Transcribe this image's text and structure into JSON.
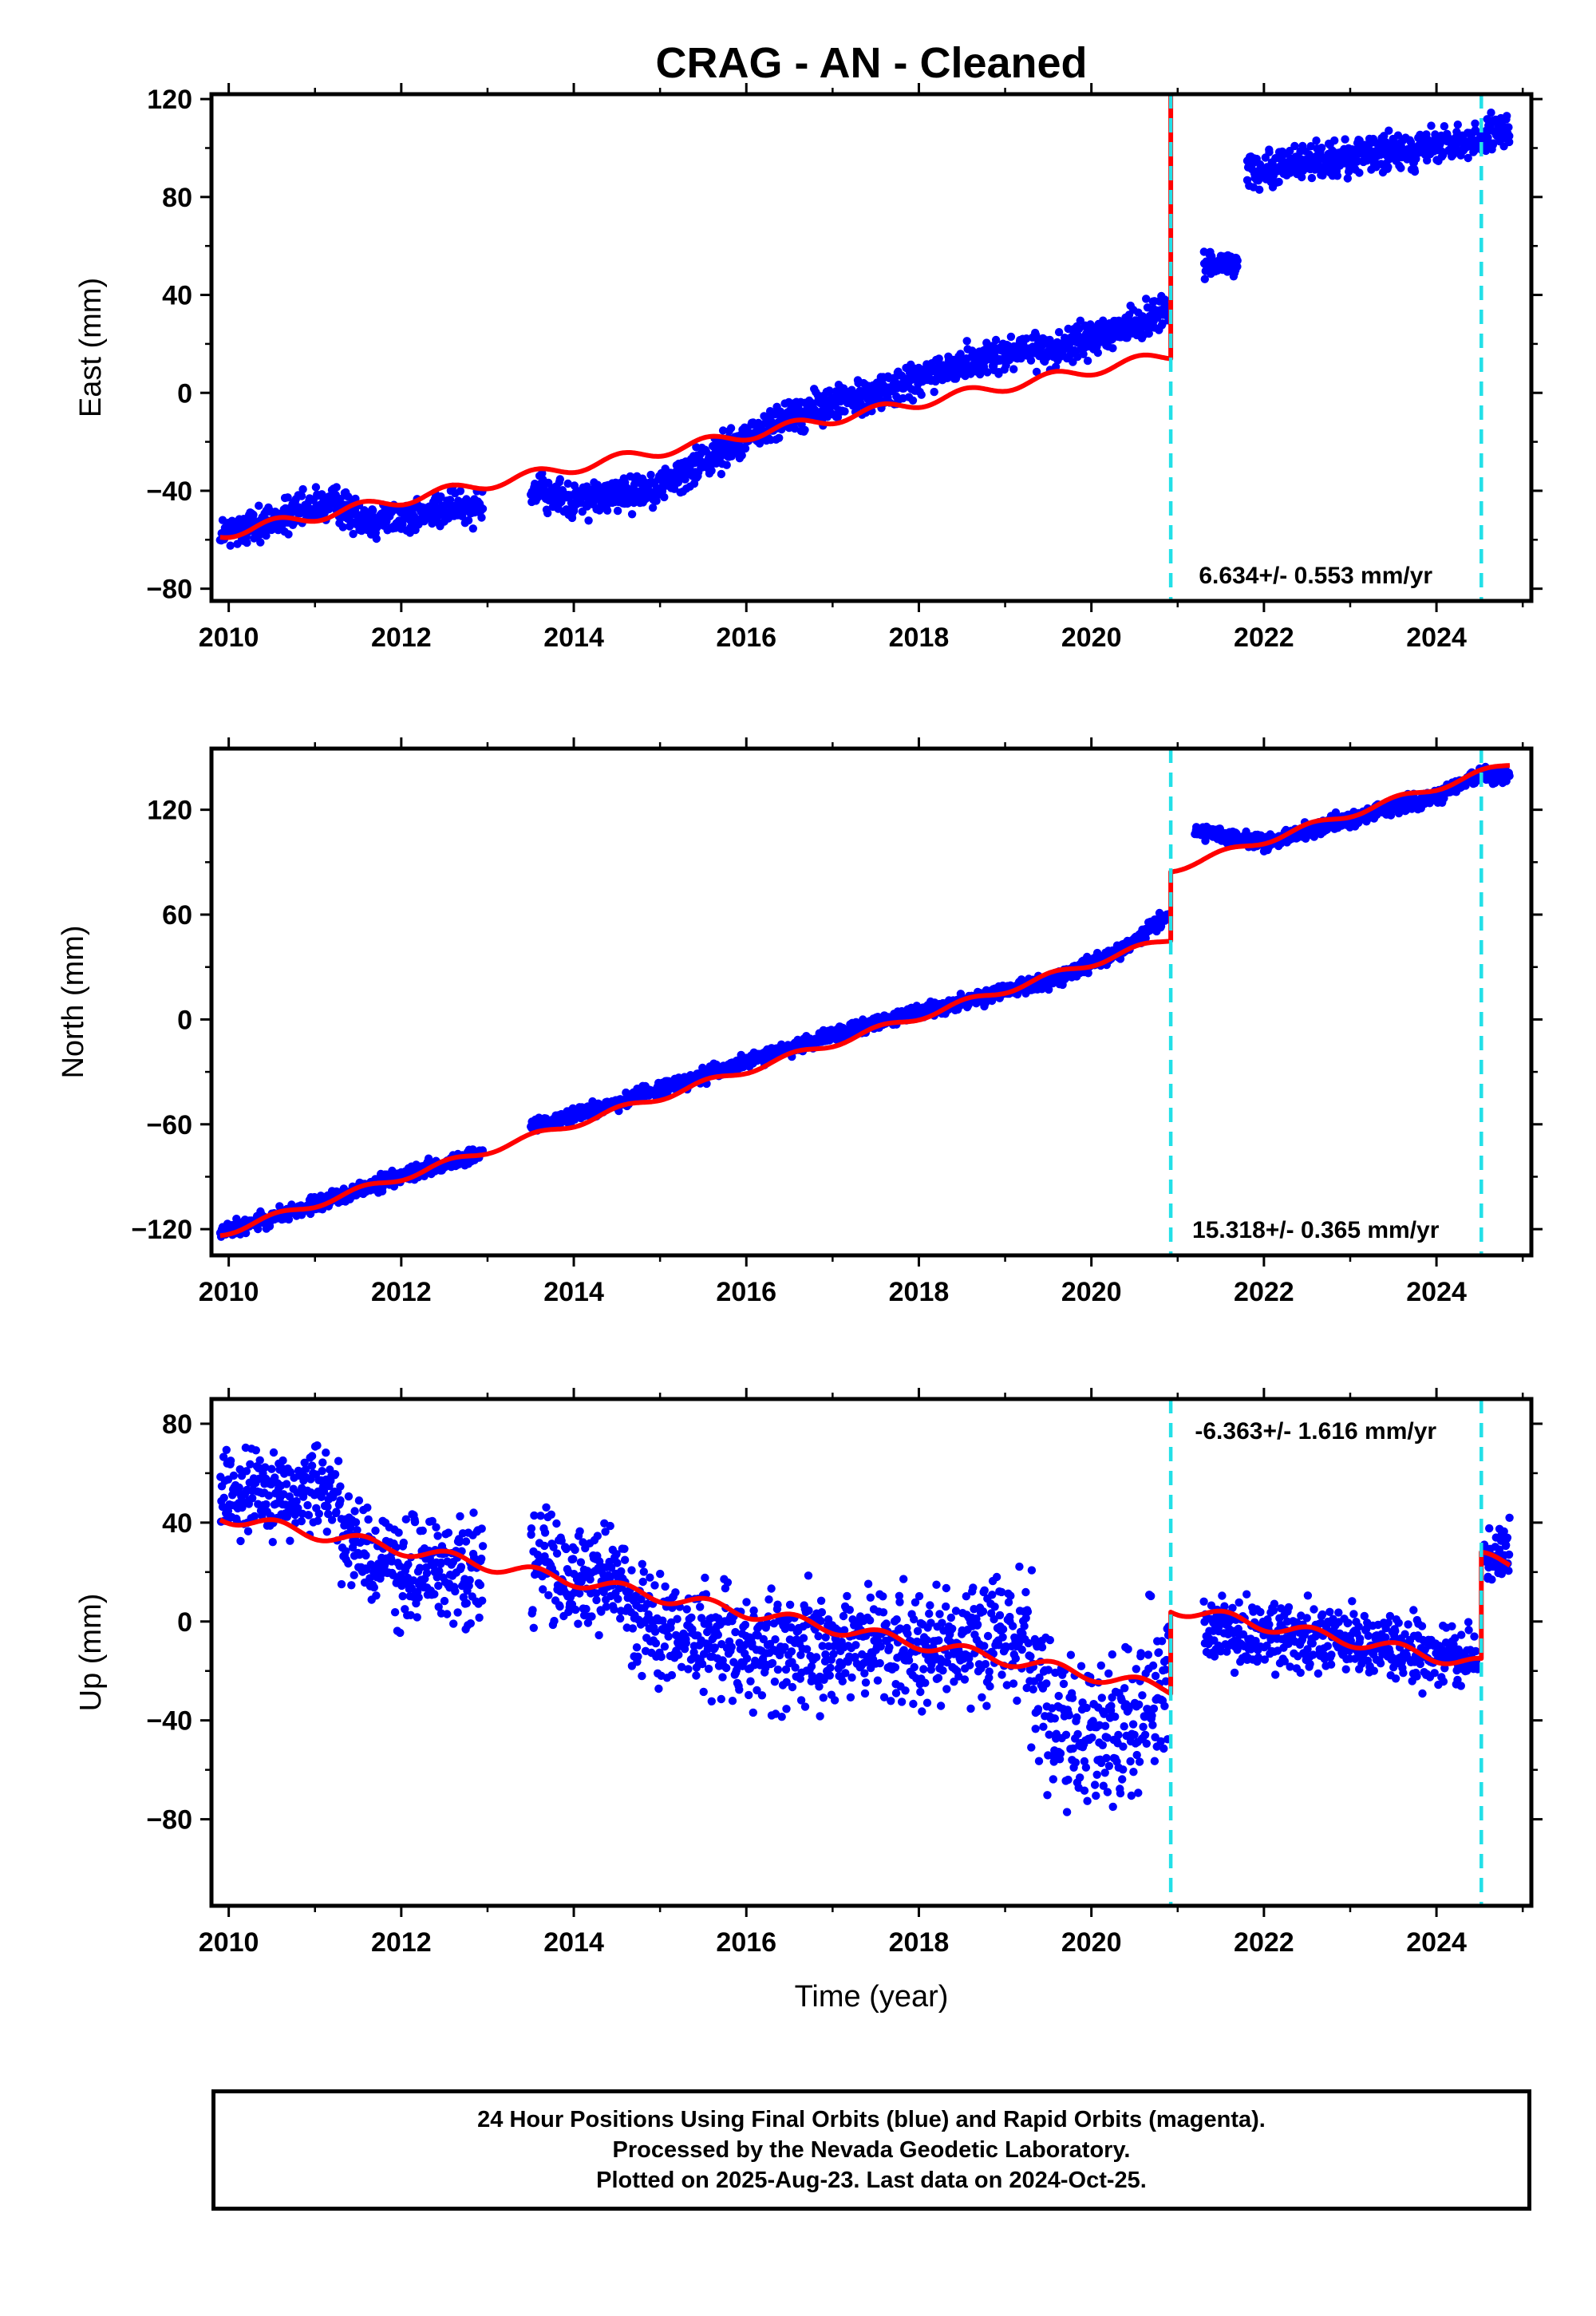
{
  "title": "CRAG  - AN - Cleaned",
  "colors": {
    "data": "#0000ff",
    "model": "#ff0000",
    "step": "#22e0e8",
    "frame": "#000000"
  },
  "chart_data": [
    {
      "type": "scatter",
      "panel": "east",
      "ylabel": "East (mm)",
      "xlim": [
        2009.8,
        2025.1
      ],
      "ylim": [
        -85,
        122
      ],
      "yticks": [
        -80,
        -40,
        0,
        40,
        80,
        120
      ],
      "xticks": [
        2010,
        2012,
        2014,
        2016,
        2018,
        2020,
        2022,
        2024
      ],
      "steps": [
        2020.92,
        2024.52
      ],
      "rate_text": "6.634+/- 0.553 mm/yr",
      "series": [
        {
          "kind": "points",
          "segments": [
            {
              "x0": 2009.9,
              "x1": 2012.95,
              "pts": [
                [
                  2009.9,
                  -58
                ],
                [
                  2010.5,
                  -52
                ],
                [
                  2011.2,
                  -45
                ],
                [
                  2011.6,
                  -52
                ],
                [
                  2012.2,
                  -50
                ],
                [
                  2012.95,
                  -45
                ]
              ],
              "noise": 5
            },
            {
              "x0": 2013.5,
              "x1": 2020.9,
              "pts": [
                [
                  2013.5,
                  -40
                ],
                [
                  2014.0,
                  -44
                ],
                [
                  2014.5,
                  -42
                ],
                [
                  2015.0,
                  -38
                ],
                [
                  2015.5,
                  -28
                ],
                [
                  2016.0,
                  -18
                ],
                [
                  2016.5,
                  -10
                ],
                [
                  2017.0,
                  -5
                ],
                [
                  2017.5,
                  0
                ],
                [
                  2018.0,
                  5
                ],
                [
                  2018.5,
                  12
                ],
                [
                  2019.0,
                  16
                ],
                [
                  2019.5,
                  18
                ],
                [
                  2020.0,
                  22
                ],
                [
                  2020.5,
                  28
                ],
                [
                  2020.9,
                  33
                ]
              ],
              "noise": 5
            },
            {
              "x0": 2021.3,
              "x1": 2021.7,
              "pts": [
                [
                  2021.3,
                  52
                ],
                [
                  2021.7,
                  53
                ]
              ],
              "noise": 3
            },
            {
              "x0": 2021.8,
              "x1": 2024.85,
              "pts": [
                [
                  2021.8,
                  90
                ],
                [
                  2022.5,
                  95
                ],
                [
                  2023.0,
                  96
                ],
                [
                  2023.5,
                  98
                ],
                [
                  2024.0,
                  100
                ],
                [
                  2024.5,
                  104
                ],
                [
                  2024.85,
                  108
                ]
              ],
              "noise": 5
            }
          ]
        },
        {
          "kind": "model",
          "segments": [
            {
              "x0": 2009.9,
              "x1": 2020.92,
              "base": -57,
              "rate": 6.634,
              "amp": 2.2
            },
            {
              "x0": 2020.92,
              "x1": 2024.52,
              "base": 75,
              "rate": 6.634,
              "amp": 2.2
            },
            {
              "x0": 2024.52,
              "x1": 2024.85,
              "base": 80.5,
              "rate": 6.634,
              "amp": 2.2
            }
          ]
        }
      ]
    },
    {
      "type": "scatter",
      "panel": "north",
      "ylabel": "North (mm)",
      "xlim": [
        2009.8,
        2025.1
      ],
      "ylim": [
        -135,
        155
      ],
      "yticks": [
        -120,
        -60,
        0,
        60,
        120
      ],
      "xticks": [
        2010,
        2012,
        2014,
        2016,
        2018,
        2020,
        2022,
        2024
      ],
      "steps": [
        2020.92,
        2024.52
      ],
      "rate_text": "15.318+/- 0.365 mm/yr",
      "series": [
        {
          "kind": "points",
          "segments": [
            {
              "x0": 2009.9,
              "x1": 2012.95,
              "pts": [
                [
                  2009.9,
                  -122
                ],
                [
                  2011.0,
                  -106
                ],
                [
                  2012.0,
                  -90
                ],
                [
                  2012.95,
                  -76
                ]
              ],
              "noise": 3
            },
            {
              "x0": 2013.5,
              "x1": 2020.9,
              "pts": [
                [
                  2013.5,
                  -62
                ],
                [
                  2014.5,
                  -48
                ],
                [
                  2015.5,
                  -32
                ],
                [
                  2016.5,
                  -16
                ],
                [
                  2017.5,
                  -2
                ],
                [
                  2018.5,
                  10
                ],
                [
                  2019.5,
                  22
                ],
                [
                  2020.3,
                  38
                ],
                [
                  2020.9,
                  60
                ]
              ],
              "noise": 3
            },
            {
              "x0": 2021.2,
              "x1": 2024.85,
              "pts": [
                [
                  2021.2,
                  108
                ],
                [
                  2022.0,
                  101
                ],
                [
                  2023.0,
                  115
                ],
                [
                  2024.0,
                  128
                ],
                [
                  2024.5,
                  140
                ],
                [
                  2024.85,
                  140
                ]
              ],
              "noise": 3
            }
          ]
        },
        {
          "kind": "model",
          "segments": [
            {
              "x0": 2009.9,
              "x1": 2020.92,
              "base": -121,
              "rate": 15.318,
              "amp": 2.0
            },
            {
              "x0": 2020.92,
              "x1": 2024.52,
              "base": -81.5,
              "rate": 15.318,
              "amp": 2.0
            },
            {
              "x0": 2024.52,
              "x1": 2024.85,
              "base": -81.5,
              "rate": 15.318,
              "amp": 2.0
            }
          ]
        }
      ]
    },
    {
      "type": "scatter",
      "panel": "up",
      "ylabel": "Up (mm)",
      "xlabel": "Time (year)",
      "xlim": [
        2009.8,
        2025.1
      ],
      "ylim": [
        -115,
        90
      ],
      "yticks": [
        -80,
        -40,
        0,
        40,
        80
      ],
      "xticks": [
        2010,
        2012,
        2014,
        2016,
        2018,
        2020,
        2022,
        2024
      ],
      "steps": [
        2020.92,
        2024.52
      ],
      "rate_text": "-6.363+/- 1.616 mm/yr",
      "series": [
        {
          "kind": "points",
          "segments": [
            {
              "x0": 2009.9,
              "x1": 2011.3,
              "pts": [
                [
                  2009.9,
                  55
                ],
                [
                  2010.5,
                  52
                ],
                [
                  2011.3,
                  50
                ]
              ],
              "noise": 12
            },
            {
              "x0": 2011.3,
              "x1": 2012.95,
              "pts": [
                [
                  2011.3,
                  35
                ],
                [
                  2012.0,
                  20
                ],
                [
                  2012.95,
                  20
                ]
              ],
              "noise": 14
            },
            {
              "x0": 2013.5,
              "x1": 2016.0,
              "pts": [
                [
                  2013.5,
                  25
                ],
                [
                  2014.5,
                  15
                ],
                [
                  2015.0,
                  -5
                ],
                [
                  2016.0,
                  -10
                ]
              ],
              "noise": 15
            },
            {
              "x0": 2016.0,
              "x1": 2019.3,
              "pts": [
                [
                  2016.0,
                  -15
                ],
                [
                  2017.0,
                  -8
                ],
                [
                  2018.0,
                  -12
                ],
                [
                  2019.0,
                  -5
                ],
                [
                  2019.3,
                  -5
                ]
              ],
              "noise": 16
            },
            {
              "x0": 2019.3,
              "x1": 2020.9,
              "pts": [
                [
                  2019.3,
                  -20
                ],
                [
                  2019.7,
                  -45
                ],
                [
                  2020.2,
                  -50
                ],
                [
                  2020.9,
                  -25
                ]
              ],
              "noise": 22
            },
            {
              "x0": 2021.3,
              "x1": 2024.48,
              "pts": [
                [
                  2021.3,
                  -5
                ],
                [
                  2022.3,
                  -5
                ],
                [
                  2023.3,
                  -10
                ],
                [
                  2024.48,
                  -15
                ]
              ],
              "noise": 9
            },
            {
              "x0": 2024.55,
              "x1": 2024.85,
              "pts": [
                [
                  2024.55,
                  25
                ],
                [
                  2024.85,
                  30
                ]
              ],
              "noise": 7
            }
          ]
        },
        {
          "kind": "model",
          "segments": [
            {
              "x0": 2009.9,
              "x1": 2020.92,
              "base": 42,
              "rate": -6.363,
              "amp": 2.5
            },
            {
              "x0": 2020.92,
              "x1": 2024.52,
              "base": 75,
              "rate": -6.363,
              "amp": 2.5
            },
            {
              "x0": 2024.52,
              "x1": 2024.85,
              "base": 118,
              "rate": -6.363,
              "amp": 2.5
            }
          ]
        }
      ]
    }
  ],
  "footer": {
    "line1": "24 Hour Positions Using Final Orbits (blue) and Rapid Orbits (magenta).",
    "line2": "Processed by the Nevada Geodetic Laboratory.",
    "line3": "Plotted on 2025-Aug-23. Last data on 2024-Oct-25."
  }
}
